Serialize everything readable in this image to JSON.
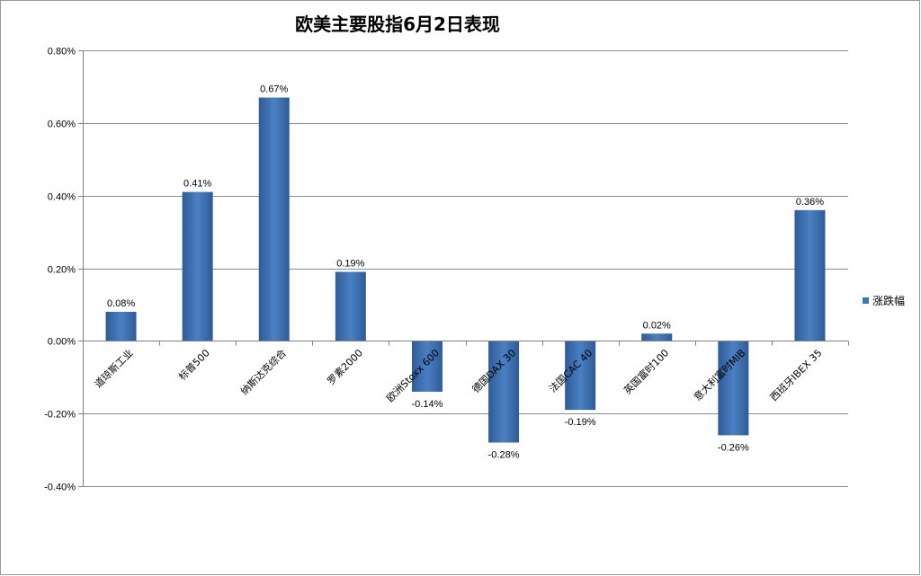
{
  "chart_data": {
    "type": "bar",
    "title": "欧美主要股指6月2日表现",
    "categories": [
      "道琼斯工业",
      "标普500",
      "纳斯达克综合",
      "罗素2000",
      "欧洲Stoxx 600",
      "德国DAX 30",
      "法国CAC 40",
      "英国富时100",
      "意大利富时MIB",
      "西班牙IBEX 35"
    ],
    "series": [
      {
        "name": "涨跌幅",
        "values": [
          0.08,
          0.41,
          0.67,
          0.19,
          -0.14,
          -0.28,
          -0.19,
          0.02,
          -0.26,
          0.36
        ],
        "labels": [
          "0.08%",
          "0.41%",
          "0.67%",
          "0.19%",
          "-0.14%",
          "-0.28%",
          "-0.19%",
          "0.02%",
          "-0.26%",
          "0.36%"
        ]
      }
    ],
    "yticks": [
      "0.80%",
      "0.60%",
      "0.40%",
      "0.20%",
      "0.00%",
      "-0.20%",
      "-0.40%"
    ],
    "ytick_values": [
      0.8,
      0.6,
      0.4,
      0.2,
      0.0,
      -0.2,
      -0.4
    ],
    "ylim": [
      -0.4,
      0.8
    ],
    "grid": true,
    "legend_position": "right",
    "colors": {
      "bar": "#3f74b8",
      "bar_dark": "#2f5b96",
      "grid": "#8c8c8c",
      "axis": "#808080"
    }
  }
}
